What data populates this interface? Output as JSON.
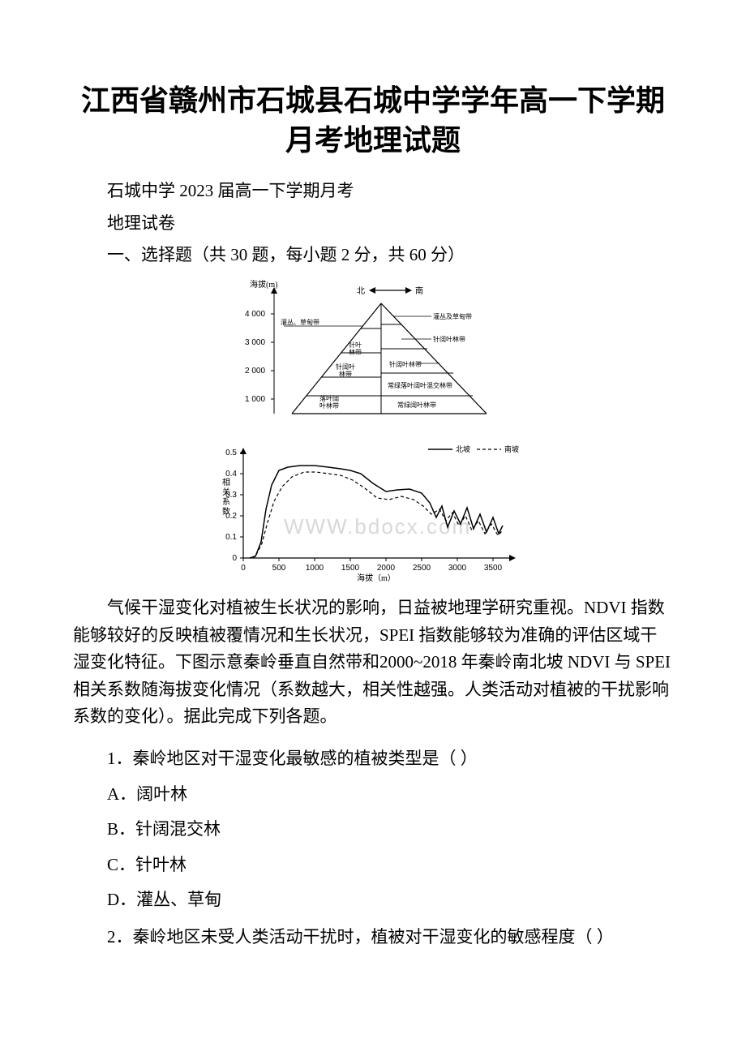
{
  "title_line1": "江西省赣州市石城县石城中学学年高一下学期",
  "title_line2": "月考地理试题",
  "header_school": "石城中学 2023 届高一下学期月考",
  "header_subject": "地理试卷",
  "section_label": "一、选择题（共 30 题，每小题 2 分，共 60 分）",
  "diagram1": {
    "y_label": "海拔(m)",
    "north_south": {
      "north": "北",
      "south": "南"
    },
    "y_ticks": [
      "1 000",
      "2 000",
      "3 000",
      "4 000"
    ],
    "bands": {
      "top_left": "灌丛、草甸带",
      "top_right": "灌丛及草甸带",
      "l2_left": "针叶林带",
      "l2_right": "针阔叶林带",
      "l3_left": "针阔叶林带",
      "l3_right": "常绿落叶阔叶混交林带",
      "l4_left": "落叶阔叶林带",
      "l4_right": "常绿阔叶林带"
    }
  },
  "chart": {
    "y_label": "相关系数",
    "x_label": "海拔（m）",
    "y_ticks": [
      "0",
      "0.1",
      "0.2",
      "0.3",
      "0.4",
      "0.5"
    ],
    "y_positions": [
      150,
      124,
      98,
      72,
      46,
      20
    ],
    "x_ticks": [
      "0",
      "500",
      "1000",
      "1500",
      "2000",
      "2500",
      "3000",
      "3500"
    ],
    "x_positions": [
      40,
      84,
      128,
      172,
      216,
      260,
      304,
      348
    ],
    "legend": {
      "north": "北坡",
      "south": "南坡"
    },
    "north_points": [
      [
        48,
        150
      ],
      [
        55,
        148
      ],
      [
        62,
        130
      ],
      [
        68,
        90
      ],
      [
        75,
        60
      ],
      [
        84,
        42
      ],
      [
        95,
        38
      ],
      [
        110,
        36
      ],
      [
        128,
        36
      ],
      [
        145,
        38
      ],
      [
        160,
        40
      ],
      [
        172,
        42
      ],
      [
        185,
        46
      ],
      [
        200,
        58
      ],
      [
        216,
        68
      ],
      [
        230,
        66
      ],
      [
        245,
        65
      ],
      [
        260,
        70
      ],
      [
        270,
        82
      ],
      [
        278,
        100
      ],
      [
        285,
        86
      ],
      [
        292,
        112
      ],
      [
        300,
        92
      ],
      [
        308,
        108
      ],
      [
        316,
        88
      ],
      [
        324,
        114
      ],
      [
        332,
        96
      ],
      [
        340,
        118
      ],
      [
        348,
        100
      ],
      [
        355,
        120
      ],
      [
        360,
        110
      ]
    ],
    "south_points": [
      [
        50,
        150
      ],
      [
        56,
        146
      ],
      [
        63,
        132
      ],
      [
        70,
        106
      ],
      [
        78,
        80
      ],
      [
        88,
        62
      ],
      [
        100,
        50
      ],
      [
        115,
        44
      ],
      [
        130,
        44
      ],
      [
        145,
        46
      ],
      [
        160,
        48
      ],
      [
        175,
        54
      ],
      [
        190,
        64
      ],
      [
        205,
        76
      ],
      [
        220,
        78
      ],
      [
        235,
        74
      ],
      [
        250,
        78
      ],
      [
        262,
        86
      ],
      [
        272,
        96
      ],
      [
        282,
        90
      ],
      [
        290,
        104
      ],
      [
        298,
        94
      ],
      [
        306,
        110
      ],
      [
        314,
        98
      ],
      [
        322,
        116
      ],
      [
        330,
        104
      ],
      [
        338,
        120
      ],
      [
        346,
        108
      ],
      [
        354,
        122
      ],
      [
        360,
        116
      ]
    ],
    "watermark": "WWW.bdocx.com"
  },
  "passage": "气候干湿变化对植被生长状况的影响，日益被地理学研究重视。NDVI 指数能够较好的反映植被覆情况和生长状况，SPEI 指数能够较为准确的评估区域干湿变化特征。下图示意秦岭垂直自然带和2000~2018 年秦岭南北坡 NDVI 与 SPEI 相关系数随海拔变化情况（系数越大，相关性越强。人类活动对植被的干扰影响系数的变化）。据此完成下列各题。",
  "q1": {
    "stem": "1．秦岭地区对干湿变化最敏感的植被类型是（  ）",
    "A": "A．阔叶林",
    "B": "B．针阔混交林",
    "C": "C．针叶林",
    "D": "D．灌丛、草甸"
  },
  "q2": {
    "stem": "2．秦岭地区未受人类活动干扰时，植被对干湿变化的敏感程度（  ）"
  }
}
